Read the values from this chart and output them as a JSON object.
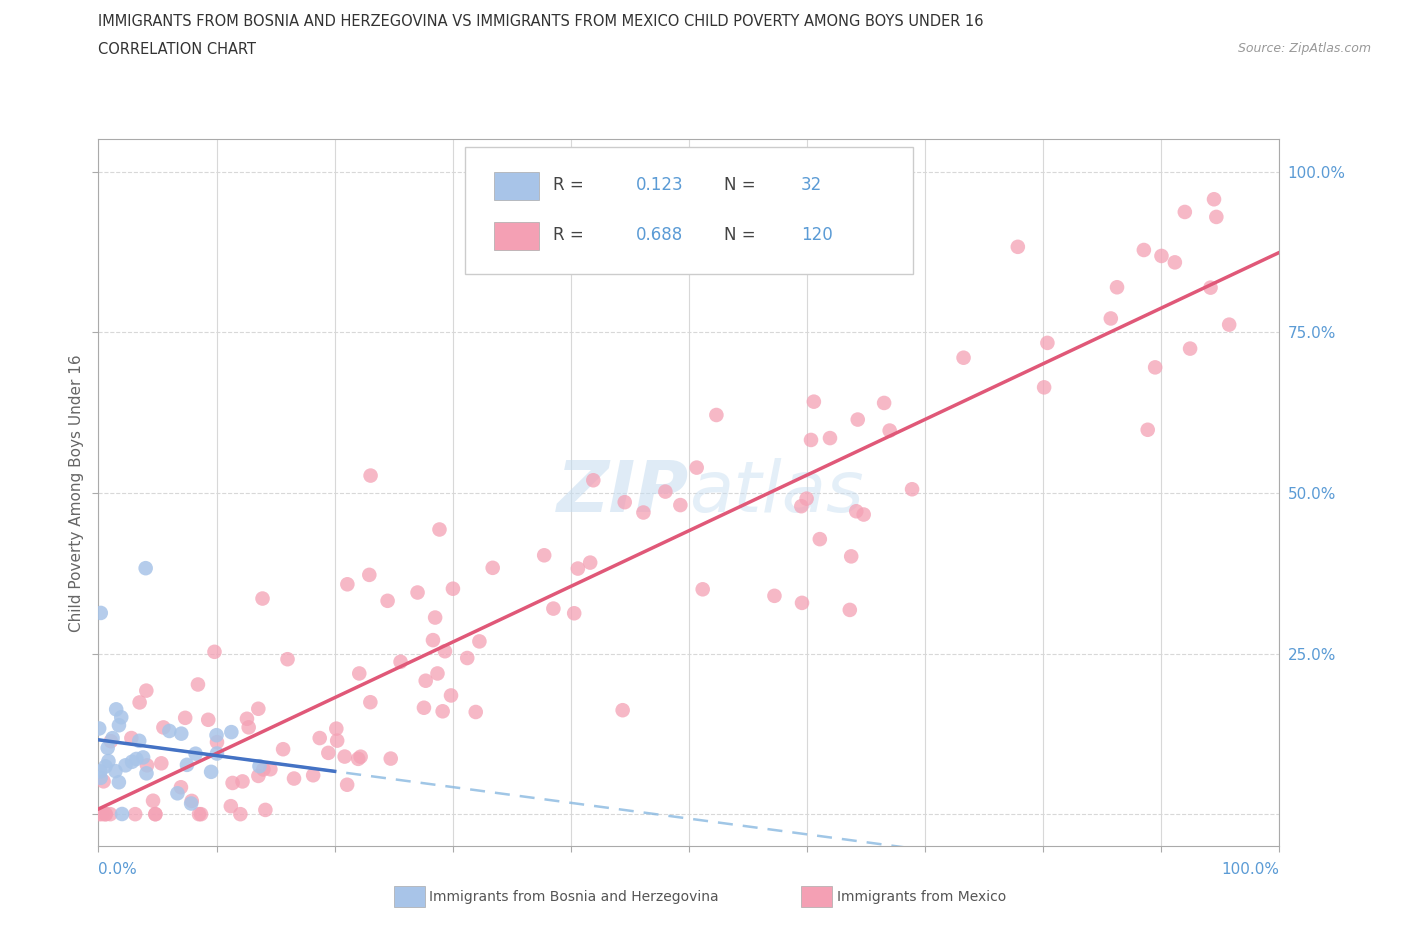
{
  "title_line1": "IMMIGRANTS FROM BOSNIA AND HERZEGOVINA VS IMMIGRANTS FROM MEXICO CHILD POVERTY AMONG BOYS UNDER 16",
  "title_line2": "CORRELATION CHART",
  "source_text": "Source: ZipAtlas.com",
  "ylabel": "Child Poverty Among Boys Under 16",
  "watermark": "ZIPAtlas",
  "bosnia_color": "#a8c4e8",
  "mexico_color": "#f4a0b4",
  "bosnia_line_color": "#4472c4",
  "mexico_line_color": "#e05878",
  "bosnia_dash_color": "#88b8e0",
  "bosnia_R": 0.123,
  "bosnia_N": 32,
  "mexico_R": 0.688,
  "mexico_N": 120,
  "grid_color": "#d8d8d8",
  "axis_color": "#aaaaaa",
  "title_color": "#333333",
  "label_color": "#666666",
  "right_tick_color": "#5b9bd5",
  "ytick_values": [
    0.0,
    0.25,
    0.5,
    0.75,
    1.0
  ],
  "ytick_labels": [
    "",
    "25.0%",
    "50.0%",
    "75.0%",
    "100.0%"
  ],
  "xlim": [
    0.0,
    1.0
  ],
  "ylim": [
    -0.05,
    1.05
  ]
}
